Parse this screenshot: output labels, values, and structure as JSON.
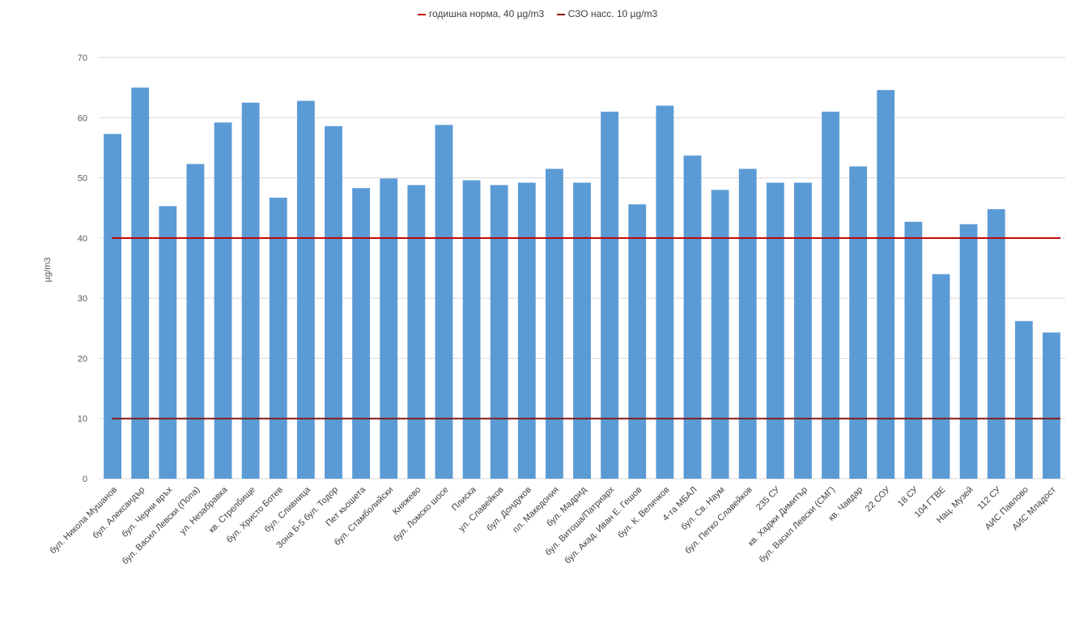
{
  "chart_data": {
    "type": "bar",
    "ylabel": "µg/m3",
    "ylim": [
      0,
      70
    ],
    "yticks": [
      0,
      10,
      20,
      30,
      40,
      50,
      60,
      70
    ],
    "grid": true,
    "legend_position": "top",
    "bar_color": "#5b9bd5",
    "categories": [
      "бул. Никола Мушанов",
      "бул. Александър",
      "бул. Черни връх",
      "бул. Васил Левски (Попа)",
      "ул. Незабравка",
      "кв. Стрелбище",
      "бул. Христо Ботев",
      "бул. Сливница",
      "Зона Б-5 бул. Тодор",
      "Пет кьошета",
      "бул. Стамболийски",
      "Княжево",
      "бул. Ломско шосе",
      "Плиска",
      "ул. Славейков",
      "бул. Дондуков",
      "пл. Македония",
      "бул. Мадрид",
      "бул. Витоша/Патриарх",
      "бул. Акад. Иван Е. Гешов",
      "бул. К. Величков",
      "4-та МБАЛ",
      "бул. Св. Наум",
      "бул. Петко Славейков",
      "235 СУ",
      "кв. Хаджи Димитър",
      "бул. Васил Левски (СМГ)",
      "кв. Чавдар",
      "22 СОУ",
      "18 СУ",
      "104 ГТВЕ",
      "Нац. Музей",
      "112 СУ",
      "АИС Павлово",
      "АИС Младост"
    ],
    "series": [
      {
        "values": [
          57.3,
          65.0,
          45.3,
          52.3,
          59.2,
          62.5,
          46.7,
          62.8,
          58.6,
          48.3,
          49.9,
          48.8,
          58.8,
          49.6,
          48.8,
          49.2,
          51.5,
          49.2,
          61.0,
          45.6,
          62.0,
          53.7,
          48.0,
          51.5,
          49.2,
          49.2,
          61.0,
          51.9,
          64.6,
          42.7,
          34.0,
          42.3,
          44.8,
          26.2,
          24.3
        ]
      }
    ],
    "reference_lines": [
      {
        "name": "годишна норма, 40 µg/m3",
        "value": 40,
        "color": "#c00000"
      },
      {
        "name": "СЗО насс. 10 µg/m3",
        "value": 10,
        "color": "#7f1d1d"
      }
    ]
  }
}
